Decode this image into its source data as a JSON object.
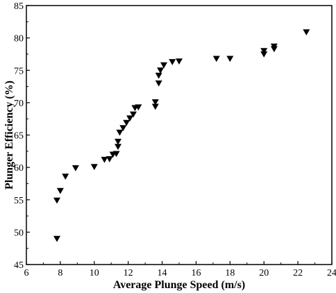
{
  "chart_data": {
    "type": "scatter",
    "title": "",
    "xlabel": "Average Plunge Speed (m/s)",
    "ylabel": "Plunger Efficiency (%)",
    "xlim": [
      6,
      24
    ],
    "ylim": [
      45,
      85
    ],
    "xticks": [
      6,
      8,
      10,
      12,
      14,
      16,
      18,
      20,
      22,
      24
    ],
    "yticks": [
      45,
      50,
      55,
      60,
      65,
      70,
      75,
      80,
      85
    ],
    "marker": "down-triangle",
    "marker_color": "#000000",
    "grid": false,
    "legend": "none",
    "series": [
      {
        "points": [
          [
            7.8,
            49.0
          ],
          [
            7.8,
            54.9
          ],
          [
            8.0,
            56.4
          ],
          [
            8.3,
            58.6
          ],
          [
            8.9,
            59.9
          ],
          [
            10.0,
            60.1
          ],
          [
            10.6,
            61.2
          ],
          [
            10.9,
            61.3
          ],
          [
            11.1,
            62.0
          ],
          [
            11.3,
            62.1
          ],
          [
            11.4,
            63.2
          ],
          [
            11.4,
            64.0
          ],
          [
            11.5,
            65.4
          ],
          [
            11.7,
            66.1
          ],
          [
            11.9,
            66.9
          ],
          [
            12.1,
            67.6
          ],
          [
            12.3,
            68.2
          ],
          [
            12.4,
            69.2
          ],
          [
            12.6,
            69.3
          ],
          [
            13.6,
            69.4
          ],
          [
            13.6,
            70.1
          ],
          [
            13.8,
            73.0
          ],
          [
            13.8,
            74.2
          ],
          [
            13.9,
            75.0
          ],
          [
            14.1,
            75.8
          ],
          [
            14.6,
            76.3
          ],
          [
            15.0,
            76.4
          ],
          [
            17.2,
            76.8
          ],
          [
            18.0,
            76.8
          ],
          [
            20.0,
            77.5
          ],
          [
            20.0,
            78.0
          ],
          [
            20.6,
            78.3
          ],
          [
            20.6,
            78.7
          ],
          [
            22.5,
            80.9
          ]
        ]
      }
    ]
  }
}
